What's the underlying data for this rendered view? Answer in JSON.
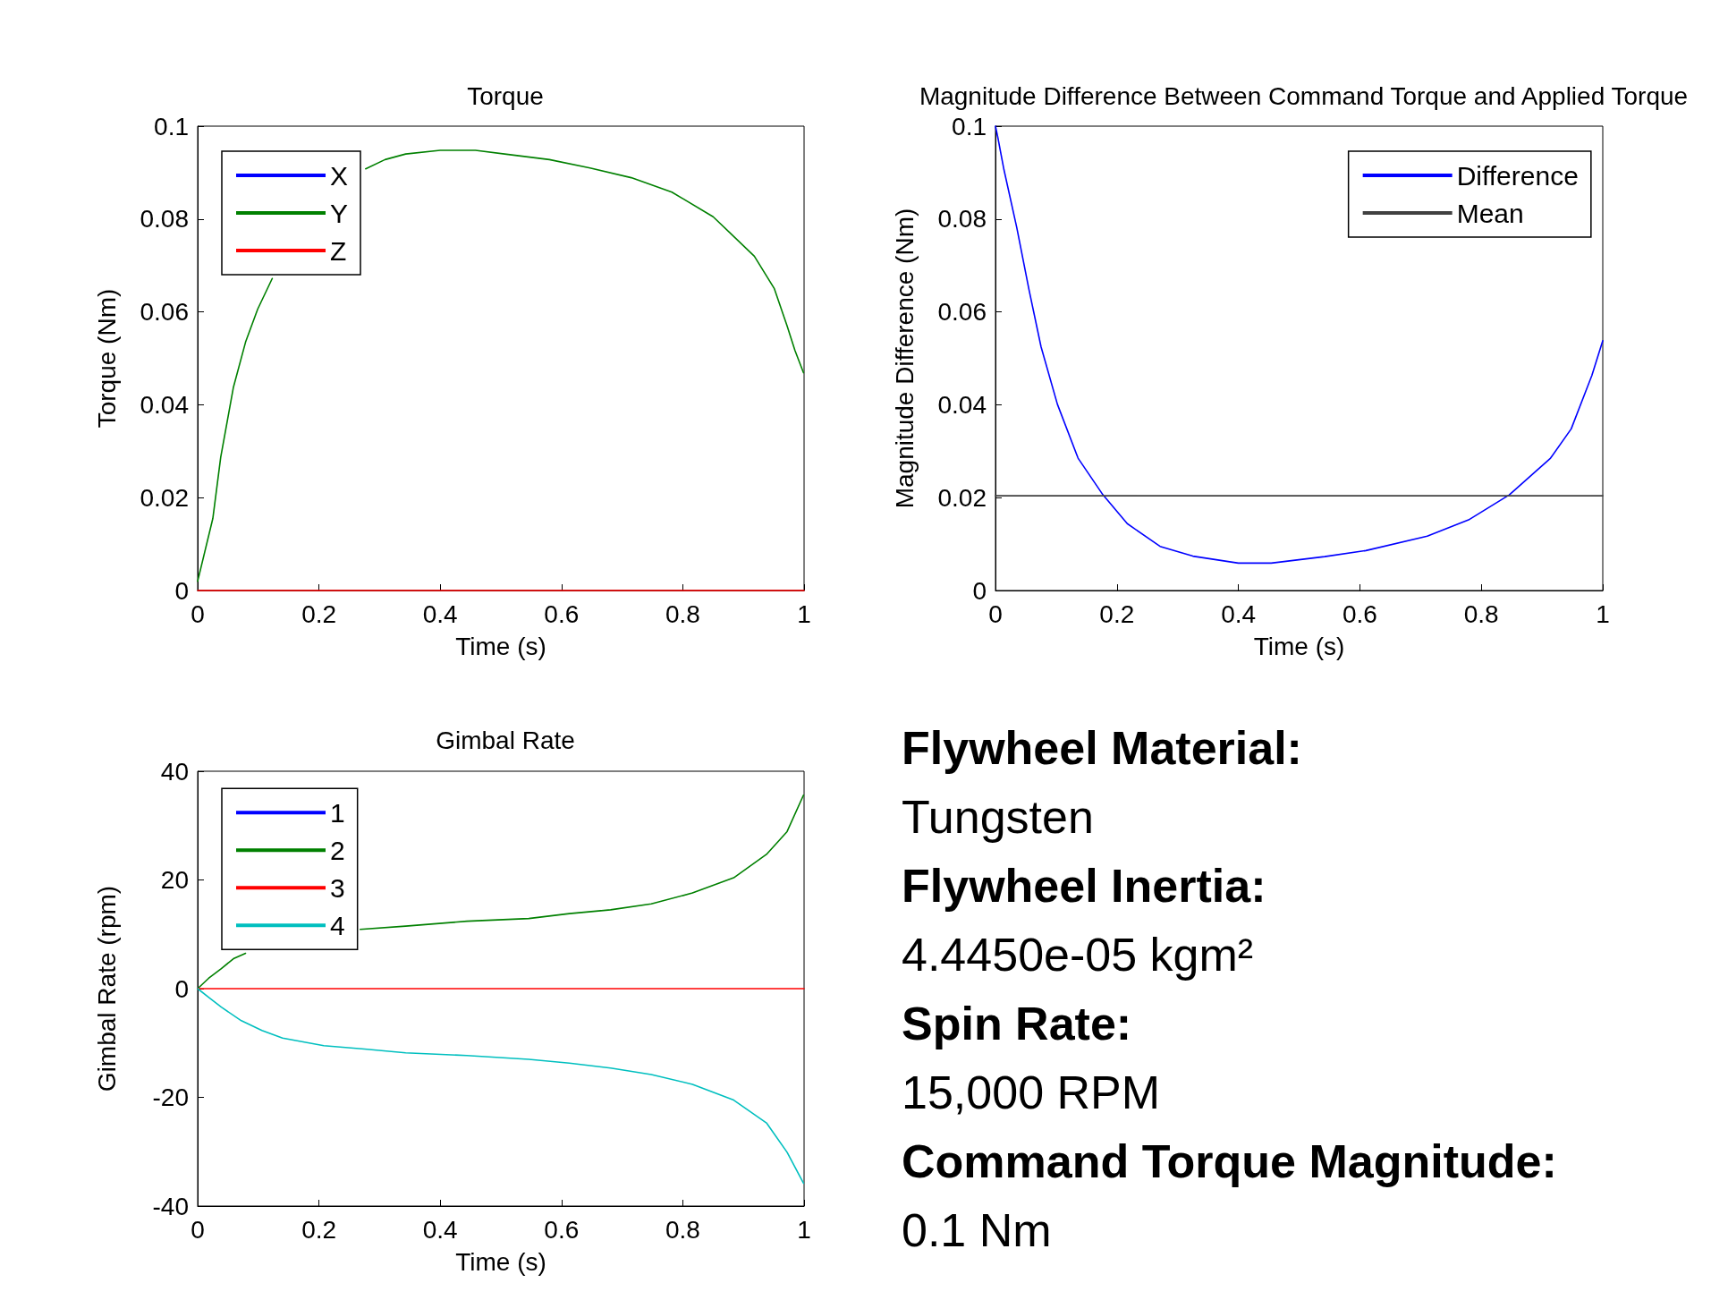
{
  "chart_data": [
    {
      "type": "line",
      "title": "Torque",
      "xlabel": "Time (s)",
      "ylabel": "Torque (Nm)",
      "xlim": [
        0,
        1
      ],
      "ylim": [
        0,
        0.1
      ],
      "xticks": [
        0,
        0.2,
        0.4,
        0.6,
        0.8,
        1
      ],
      "yticks": [
        0,
        0.02,
        0.04,
        0.06,
        0.08,
        0.1
      ],
      "grid": false,
      "legend": "top left",
      "marker": "none",
      "line_style": "solid",
      "series": [
        {
          "name": "X",
          "color": "#0000ff"
        },
        {
          "name": "Y",
          "color": "#008000",
          "x": [
            0,
            0.025,
            0.038,
            0.059,
            0.079,
            0.099,
            0.123,
            0.158,
            0.277,
            0.309,
            0.343,
            0.4,
            0.458,
            0.512,
            0.58,
            0.647,
            0.715,
            0.782,
            0.85,
            0.918,
            0.951,
            0.972,
            0.985,
            0.999
          ],
          "values": [
            0.002,
            0.0155,
            0.0287,
            0.0438,
            0.0535,
            0.0606,
            0.0672,
            null,
            0.0908,
            0.0928,
            0.094,
            0.0948,
            0.0948,
            0.0939,
            0.0928,
            0.091,
            0.0889,
            0.0858,
            0.0805,
            0.072,
            0.065,
            0.057,
            0.0517,
            0.0469
          ]
        },
        {
          "name": "Z",
          "color": "#ff0000",
          "x": [
            0,
            1
          ],
          "values": [
            0,
            0
          ]
        }
      ]
    },
    {
      "type": "line",
      "title": "Magnitude Difference Between Command Torque and Applied Torque",
      "xlabel": "Time (s)",
      "ylabel": "Magnitude Difference (Nm)",
      "xlim": [
        0,
        1
      ],
      "ylim": [
        0,
        0.1
      ],
      "xticks": [
        0,
        0.2,
        0.4,
        0.6,
        0.8,
        1
      ],
      "yticks": [
        0,
        0.02,
        0.04,
        0.06,
        0.08,
        0.1
      ],
      "grid": false,
      "legend": "top right",
      "marker": "none",
      "line_style": "solid",
      "series": [
        {
          "name": "Difference",
          "color": "#0000ff",
          "x": [
            0,
            0.004,
            0.014,
            0.035,
            0.055,
            0.075,
            0.102,
            0.136,
            0.177,
            0.217,
            0.271,
            0.325,
            0.4,
            0.454,
            0.542,
            0.61,
            0.711,
            0.779,
            0.846,
            0.914,
            0.948,
            0.982,
            1
          ],
          "values": [
            0.1,
            0.0975,
            0.0906,
            0.0782,
            0.0649,
            0.0525,
            0.0401,
            0.0285,
            0.0206,
            0.0144,
            0.0095,
            0.0074,
            0.0059,
            0.0059,
            0.0073,
            0.0086,
            0.0117,
            0.0152,
            0.0206,
            0.0285,
            0.0348,
            0.0463,
            0.0538
          ]
        },
        {
          "name": "Mean",
          "color": "#404040",
          "x": [
            0,
            1
          ],
          "values": [
            0.0204,
            0.0204
          ]
        }
      ]
    },
    {
      "type": "line",
      "title": "Gimbal Rate",
      "xlabel": "Time (s)",
      "ylabel": "Gimbal Rate (rpm)",
      "xlim": [
        0,
        1
      ],
      "ylim": [
        -40,
        40
      ],
      "xticks": [
        0,
        0.2,
        0.4,
        0.6,
        0.8,
        1
      ],
      "yticks": [
        -40,
        -20,
        0,
        20,
        40
      ],
      "grid": false,
      "legend": "top left",
      "marker": "none",
      "line_style": "solid",
      "series": [
        {
          "name": "1",
          "color": "#0000ff"
        },
        {
          "name": "2",
          "color": "#008000",
          "x": [
            0,
            0.018,
            0.039,
            0.059,
            0.079,
            0.15,
            0.268,
            0.343,
            0.444,
            0.546,
            0.613,
            0.681,
            0.748,
            0.816,
            0.884,
            0.938,
            0.972,
            0.999
          ],
          "values": [
            0,
            1.9,
            3.7,
            5.5,
            6.5,
            null,
            10.9,
            11.5,
            12.4,
            12.9,
            13.8,
            14.5,
            15.6,
            17.6,
            20.4,
            24.7,
            28.9,
            35.6
          ]
        },
        {
          "name": "3",
          "color": "#ff0000",
          "x": [
            0,
            1
          ],
          "values": [
            0,
            0
          ]
        },
        {
          "name": "4",
          "color": "#00bfbf",
          "x": [
            0,
            0.018,
            0.039,
            0.072,
            0.106,
            0.14,
            0.174,
            0.208,
            0.275,
            0.343,
            0.444,
            0.546,
            0.613,
            0.681,
            0.748,
            0.816,
            0.884,
            0.938,
            0.972,
            0.999
          ],
          "values": [
            0,
            -1.6,
            -3.4,
            -5.9,
            -7.7,
            -9.1,
            -9.8,
            -10.5,
            -11.1,
            -11.8,
            -12.3,
            -13.0,
            -13.7,
            -14.6,
            -15.8,
            -17.6,
            -20.5,
            -24.7,
            -30.1,
            -35.8
          ]
        }
      ]
    },
    {
      "type": "other",
      "annotations": [
        "Flywheel Material:",
        "Tungsten",
        "Flywheel Inertia:",
        "4.4450e-05 kgm²",
        "Spin Rate:",
        "15,000 RPM",
        "Command Torque Magnitude:",
        "0.1 Nm"
      ]
    }
  ]
}
